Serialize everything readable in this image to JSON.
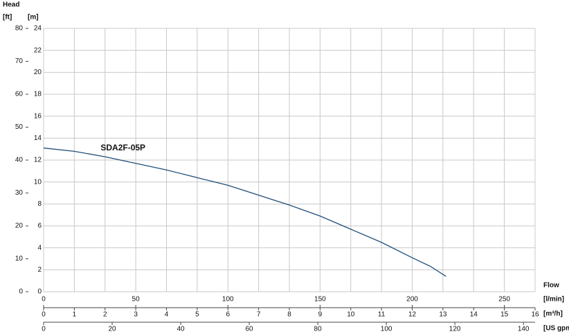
{
  "chart_data": {
    "type": "line",
    "y_label": "Head",
    "y2_unit": "[ft]",
    "y_unit": "[m]",
    "x_label": "Flow",
    "x2_unit": "[l/min]",
    "x_unit": "[m³/h]",
    "x3_unit": "[US gpm",
    "x": [
      0,
      1,
      2,
      3,
      4,
      5,
      6,
      7,
      8,
      9,
      10,
      11,
      12,
      12.6,
      13.1
    ],
    "series": [
      {
        "name": "SDA2F-05P",
        "color": "#1f4e79",
        "values": [
          13.1,
          12.8,
          12.3,
          11.7,
          11.1,
          10.4,
          9.7,
          8.8,
          7.9,
          6.9,
          5.7,
          4.5,
          3.1,
          2.3,
          1.4
        ]
      }
    ],
    "xlim": [
      0,
      16
    ],
    "xticks": [
      0,
      1,
      2,
      3,
      4,
      5,
      6,
      7,
      8,
      9,
      10,
      11,
      12,
      13,
      14,
      15,
      16
    ],
    "x2lim": [
      0,
      266.67
    ],
    "x2ticks": [
      0,
      50,
      100,
      150,
      200,
      250
    ],
    "x3lim": [
      0,
      143.4
    ],
    "x3ticks": [
      0,
      20,
      40,
      60,
      80,
      100,
      120,
      140
    ],
    "ylim": [
      0,
      24
    ],
    "yticks": [
      0,
      2,
      4,
      6,
      8,
      10,
      12,
      14,
      16,
      18,
      20,
      22,
      24
    ],
    "y2lim": [
      0,
      80
    ],
    "y2ticks": [
      0,
      10,
      20,
      30,
      40,
      50,
      60,
      70,
      80
    ],
    "grid": true
  }
}
